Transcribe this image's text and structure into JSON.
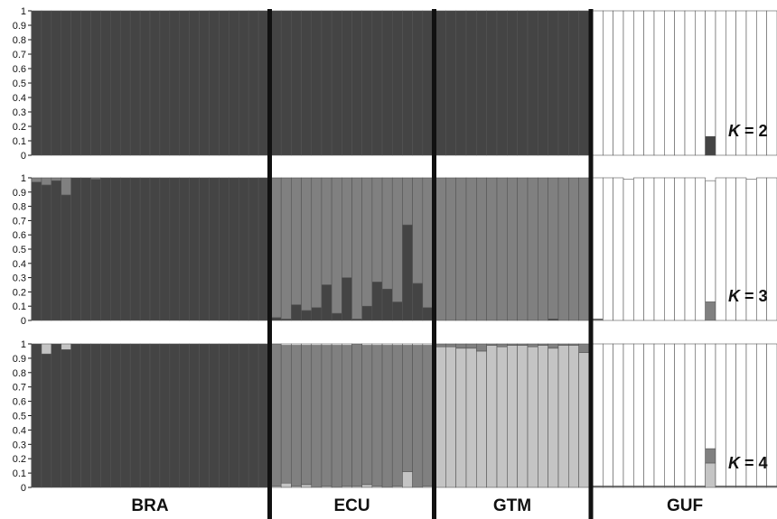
{
  "chart_data": {
    "type": "stacked-bar",
    "populations": [
      {
        "label": "BRA",
        "n": 24
      },
      {
        "label": "ECU",
        "n": 16
      },
      {
        "label": "GTM",
        "n": 15
      },
      {
        "label": "GUF",
        "n": 18
      }
    ],
    "yticks": [
      "0",
      "0.1",
      "0.2",
      "0.3",
      "0.4",
      "0.5",
      "0.6",
      "0.7",
      "0.8",
      "0.9",
      "1"
    ],
    "ylim": [
      0,
      1
    ],
    "cluster_colors": [
      "#444444",
      "#ffffff",
      "#808080",
      "#c4c4c4"
    ],
    "panels": [
      {
        "k_prefix": "K",
        "k_suffix": " = 2",
        "bottom_cluster": 0,
        "bars": {
          "BRA": [
            [
              1.0
            ]
          ],
          "ECU": [
            [
              1.0
            ]
          ],
          "GTM": [
            [
              1.0
            ]
          ],
          "GUF": [
            [
              0,
              0,
              0,
              0,
              0,
              0,
              0,
              0,
              0,
              0,
              0,
              0.13,
              0,
              0,
              0,
              0,
              0,
              0
            ]
          ]
        }
      },
      {
        "k_prefix": "K",
        "k_suffix": " = 3",
        "bottom_cluster": 0,
        "order": [
          0,
          2,
          1
        ],
        "bars": {
          "BRA": [
            [
              0.97,
              0.95,
              0.98,
              0.88,
              1,
              1,
              0.99,
              1,
              1,
              1,
              1,
              1,
              1,
              1,
              1,
              1,
              1,
              1,
              1,
              1,
              1,
              1,
              1,
              1
            ],
            [
              0.03,
              0.05,
              0.02,
              0.12,
              0,
              0,
              0.01,
              0,
              0,
              0,
              0,
              0,
              0,
              0,
              0,
              0,
              0,
              0,
              0,
              0,
              0,
              0,
              0,
              0
            ],
            [
              0,
              0,
              0,
              0,
              0,
              0,
              0,
              0,
              0,
              0,
              0,
              0,
              0,
              0,
              0,
              0,
              0,
              0,
              0,
              0,
              0,
              0,
              0,
              0
            ]
          ],
          "ECU": [
            [
              0.02,
              0.01,
              0.11,
              0.07,
              0.09,
              0.25,
              0.05,
              0.3,
              0.01,
              0.1,
              0.27,
              0.22,
              0.13,
              0.67,
              0.26,
              0.09
            ],
            [
              0.98,
              0.99,
              0.89,
              0.93,
              0.91,
              0.75,
              0.95,
              0.7,
              0.99,
              0.9,
              0.73,
              0.78,
              0.87,
              0.33,
              0.74,
              0.91
            ],
            [
              0,
              0,
              0,
              0,
              0,
              0,
              0,
              0,
              0,
              0,
              0,
              0,
              0,
              0,
              0,
              0
            ]
          ],
          "GTM": [
            [
              0,
              0,
              0,
              0,
              0,
              0,
              0,
              0,
              0,
              0,
              0,
              0.01,
              0,
              0,
              0
            ],
            [
              1,
              1,
              1,
              1,
              1,
              1,
              1,
              1,
              1,
              1,
              1,
              0.99,
              1,
              1,
              1
            ],
            [
              0,
              0,
              0,
              0,
              0,
              0,
              0,
              0,
              0,
              0,
              0,
              0,
              0,
              0,
              0
            ]
          ],
          "GUF": [
            [
              0,
              0,
              0,
              0,
              0,
              0,
              0,
              0,
              0,
              0,
              0,
              0,
              0,
              0,
              0,
              0,
              0,
              0
            ],
            [
              0.01,
              0,
              0,
              0,
              0,
              0,
              0,
              0,
              0,
              0,
              0,
              0.13,
              0,
              0,
              0,
              0,
              0,
              0
            ],
            [
              0.99,
              1,
              1,
              0.99,
              1,
              1,
              1,
              1,
              1,
              1,
              1,
              0.85,
              1,
              1,
              1,
              0.99,
              1,
              1
            ]
          ]
        }
      },
      {
        "k_prefix": "K",
        "k_suffix": " = 4",
        "bottom_cluster": 0,
        "order": [
          0,
          3,
          2,
          1
        ],
        "bars": {
          "BRA": [
            [
              1,
              0.93,
              1,
              0.96,
              1,
              1,
              1,
              1,
              1,
              1,
              1,
              1,
              1,
              1,
              1,
              1,
              1,
              1,
              1,
              1,
              1,
              1,
              1,
              1
            ],
            [
              0,
              0.07,
              0,
              0.04,
              0,
              0,
              0,
              0,
              0,
              0,
              0,
              0,
              0,
              0,
              0,
              0,
              0,
              0,
              0,
              0,
              0,
              0,
              0,
              0
            ],
            [
              0,
              0,
              0,
              0,
              0,
              0,
              0,
              0,
              0,
              0,
              0,
              0,
              0,
              0,
              0,
              0,
              0,
              0,
              0,
              0,
              0,
              0,
              0,
              0
            ],
            [
              0,
              0,
              0,
              0,
              0,
              0,
              0,
              0,
              0,
              0,
              0,
              0,
              0,
              0,
              0,
              0,
              0,
              0,
              0,
              0,
              0,
              0,
              0,
              0
            ]
          ],
          "ECU": [
            [
              0,
              0,
              0,
              0,
              0,
              0,
              0,
              0,
              0,
              0,
              0,
              0,
              0,
              0,
              0,
              0
            ],
            [
              0.01,
              0.03,
              0.01,
              0.02,
              0,
              0.01,
              0,
              0.01,
              0.01,
              0.02,
              0.01,
              0,
              0.01,
              0.11,
              0,
              0.01
            ],
            [
              0.99,
              0.96,
              0.98,
              0.97,
              0.99,
              0.98,
              0.99,
              0.98,
              0.99,
              0.97,
              0.98,
              0.99,
              0.98,
              0.88,
              0.99,
              0.98
            ],
            [
              0,
              0.01,
              0.01,
              0.01,
              0.01,
              0.01,
              0.01,
              0.01,
              0,
              0.01,
              0.01,
              0.01,
              0.01,
              0.01,
              0.01,
              0.01
            ]
          ],
          "GTM": [
            [
              0,
              0,
              0,
              0,
              0,
              0,
              0,
              0,
              0,
              0,
              0,
              0,
              0,
              0,
              0
            ],
            [
              0.98,
              0.98,
              0.97,
              0.97,
              0.95,
              0.99,
              0.98,
              0.99,
              0.99,
              0.98,
              0.99,
              0.97,
              0.99,
              0.99,
              0.94
            ],
            [
              0.02,
              0.02,
              0.03,
              0.03,
              0.05,
              0.01,
              0.02,
              0.01,
              0.01,
              0.02,
              0.01,
              0.03,
              0.01,
              0.01,
              0.06
            ],
            [
              0,
              0,
              0,
              0,
              0,
              0,
              0,
              0,
              0,
              0,
              0,
              0,
              0,
              0,
              0
            ]
          ],
          "GUF": [
            [
              0,
              0,
              0,
              0,
              0,
              0,
              0,
              0,
              0,
              0,
              0,
              0,
              0,
              0,
              0,
              0,
              0,
              0
            ],
            [
              0,
              0,
              0,
              0,
              0,
              0,
              0,
              0,
              0,
              0,
              0,
              0.17,
              0,
              0,
              0,
              0,
              0,
              0
            ],
            [
              0.01,
              0.01,
              0.01,
              0.01,
              0.01,
              0.01,
              0.01,
              0.01,
              0.01,
              0.01,
              0.01,
              0.1,
              0.01,
              0.01,
              0.01,
              0.01,
              0.01,
              0.01
            ],
            [
              0.99,
              0.99,
              0.99,
              0.99,
              0.99,
              0.99,
              0.99,
              0.99,
              0.99,
              0.99,
              0.99,
              0.73,
              0.99,
              0.99,
              0.99,
              0.99,
              0.99,
              0.99
            ]
          ]
        }
      }
    ]
  }
}
